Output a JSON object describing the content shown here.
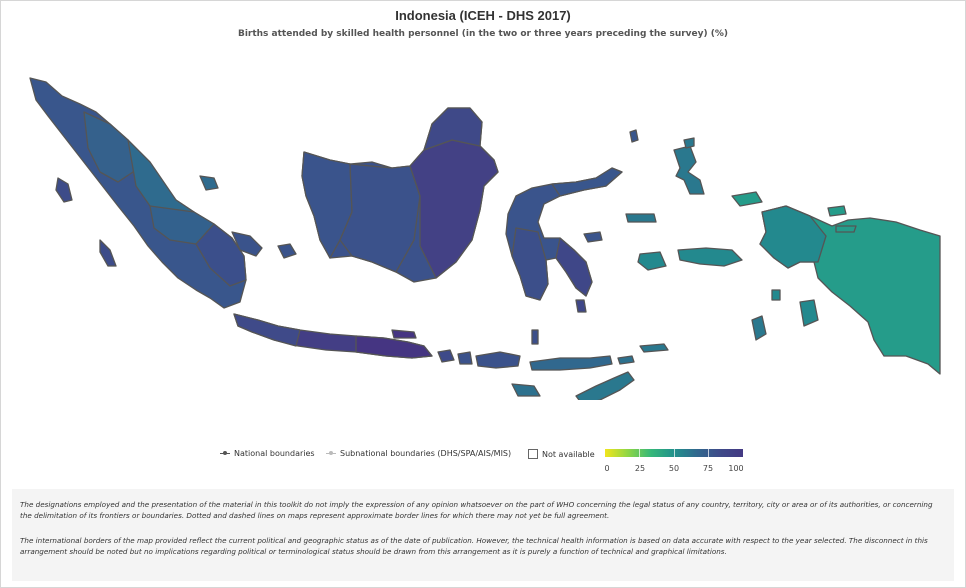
{
  "title": "Indonesia (ICEH - DHS 2017)",
  "subtitle": "Births attended by skilled health personnel (in the two or three years preceding the survey) (%)",
  "legend": {
    "national": "National boundaries",
    "subnational": "Subnational boundaries (DHS/SPA/AIS/MIS)",
    "not_available": "Not available"
  },
  "color_scale": {
    "ticks": [
      "0",
      "25",
      "50",
      "75",
      "100"
    ],
    "colors": [
      "#f1e51d",
      "#8ed645",
      "#35b779",
      "#21918c",
      "#31688e",
      "#3e4a89",
      "#443983"
    ]
  },
  "map_colors": {
    "sumatra": "#39568c",
    "kalimantan": "#3b528b",
    "java": "#433e85",
    "sulawesi": "#3a548c",
    "maluku": "#2a788e",
    "papua": "#259c8a",
    "nusa_tenggara": "#3e4a89",
    "boundary": "#555555"
  },
  "disclaimer": {
    "p1": "The designations employed and the presentation of the material in this toolkit do not imply the expression of any opinion whatsoever on the part of WHO concerning the legal status of any country, territory, city or area or of its authorities, or concerning the delimitation of its frontiers or boundaries. Dotted and dashed lines on maps represent approximate border lines for which there may not yet be full agreement.",
    "p2": "The international borders of the map provided reflect the current political and geographic status as of the date of publication. However, the technical health information is based on data accurate with respect to the year selected. The disconnect in this arrangement should be noted but no implications regarding political or terminological status should be drawn from this arrangement as it is purely a function of technical and graphical limitations."
  }
}
